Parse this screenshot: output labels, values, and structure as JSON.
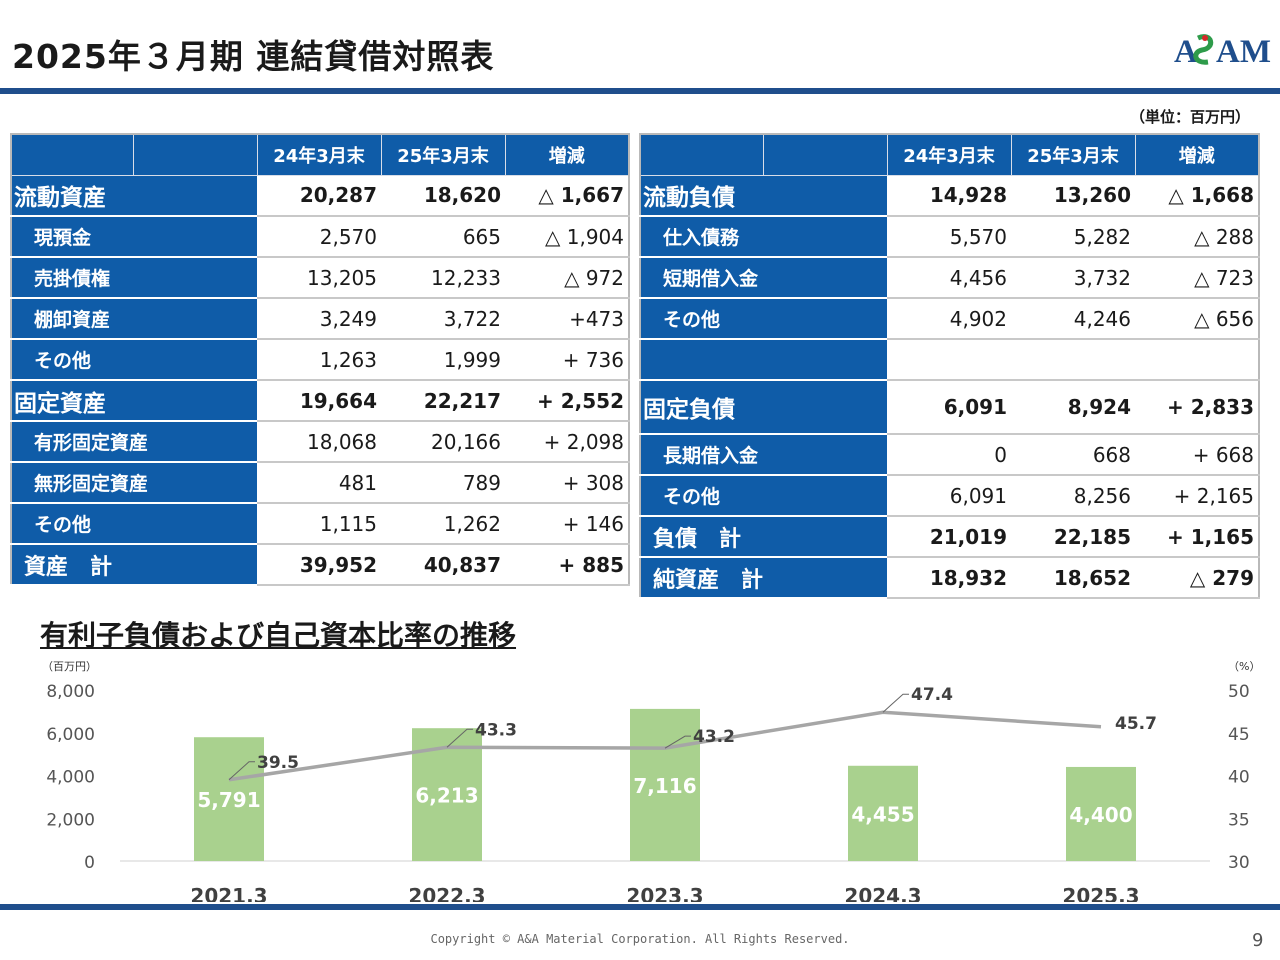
{
  "title": "2025年３月期  連結貸借対照表",
  "logo_text": "ASAM",
  "unit": "（単位：百万円）",
  "columns": {
    "blank": "",
    "c1": "24年3月末",
    "c2": "25年3月末",
    "c3": "増減"
  },
  "assets": [
    {
      "label": "流動資産",
      "v1": "20,287",
      "v2": "18,620",
      "diff": "△ 1,667",
      "kind": "main"
    },
    {
      "label": "現預金",
      "v1": "2,570",
      "v2": "665",
      "diff": "△ 1,904",
      "kind": "sub"
    },
    {
      "label": "売掛債権",
      "v1": "13,205",
      "v2": "12,233",
      "diff": "△ 972",
      "kind": "sub"
    },
    {
      "label": "棚卸資産",
      "v1": "3,249",
      "v2": "3,722",
      "diff": "+473",
      "kind": "sub"
    },
    {
      "label": "その他",
      "v1": "1,263",
      "v2": "1,999",
      "diff": "+ 736",
      "kind": "sub"
    },
    {
      "label": "固定資産",
      "v1": "19,664",
      "v2": "22,217",
      "diff": "+ 2,552",
      "kind": "main"
    },
    {
      "label": "有形固定資産",
      "v1": "18,068",
      "v2": "20,166",
      "diff": "+ 2,098",
      "kind": "sub"
    },
    {
      "label": "無形固定資産",
      "v1": "481",
      "v2": "789",
      "diff": "+ 308",
      "kind": "sub"
    },
    {
      "label": "その他",
      "v1": "1,115",
      "v2": "1,262",
      "diff": "+ 146",
      "kind": "sub"
    },
    {
      "label": "資産　計",
      "v1": "39,952",
      "v2": "40,837",
      "diff": "+ 885",
      "kind": "total"
    }
  ],
  "liabilities": [
    {
      "label": "流動負債",
      "v1": "14,928",
      "v2": "13,260",
      "diff": "△ 1,668",
      "kind": "main"
    },
    {
      "label": "仕入債務",
      "v1": "5,570",
      "v2": "5,282",
      "diff": "△ 288",
      "kind": "sub"
    },
    {
      "label": "短期借入金",
      "v1": "4,456",
      "v2": "3,732",
      "diff": "△ 723",
      "kind": "sub"
    },
    {
      "label": "その他",
      "v1": "4,902",
      "v2": "4,246",
      "diff": "△ 656",
      "kind": "sub"
    },
    {
      "label": "",
      "v1": "",
      "v2": "",
      "diff": "",
      "kind": "blank"
    },
    {
      "label": "固定負債",
      "v1": "6,091",
      "v2": "8,924",
      "diff": "+ 2,833",
      "kind": "main"
    },
    {
      "label": "長期借入金",
      "v1": "0",
      "v2": "668",
      "diff": "+ 668",
      "kind": "sub"
    },
    {
      "label": "その他",
      "v1": "6,091",
      "v2": "8,256",
      "diff": "+ 2,165",
      "kind": "sub"
    },
    {
      "label": "負債　計",
      "v1": "21,019",
      "v2": "22,185",
      "diff": "+ 1,165",
      "kind": "total"
    },
    {
      "label": "純資産　計",
      "v1": "18,932",
      "v2": "18,652",
      "diff": "△ 279",
      "kind": "total"
    }
  ],
  "chart_title": "有利子負債および自己資本比率の推移",
  "chart_data": {
    "type": "bar",
    "categories": [
      "2021.3",
      "2022.3",
      "2023.3",
      "2024.3",
      "2025.3"
    ],
    "series": [
      {
        "values": [
          5791,
          6213,
          7116,
          4455,
          4400
        ],
        "color": "#a9d18e",
        "axis": "left"
      },
      {
        "values": [
          39.5,
          43.3,
          43.2,
          47.4,
          45.7
        ],
        "color": "#a6a6a6",
        "axis": "right",
        "type": "line"
      }
    ],
    "bar_labels": [
      "5,791",
      "6,213",
      "7,116",
      "4,455",
      "4,400"
    ],
    "line_labels": [
      "39.5",
      "43.3",
      "43.2",
      "47.4",
      "45.7"
    ],
    "y_left": {
      "unit": "（百万円）",
      "ylim": [
        0,
        8000
      ],
      "ticks": [
        "0",
        "2,000",
        "4,000",
        "6,000",
        "8,000"
      ]
    },
    "y_right": {
      "unit": "（%）",
      "ylim": [
        30,
        50
      ],
      "ticks": [
        "30",
        "35",
        "40",
        "45",
        "50"
      ]
    }
  },
  "footer": {
    "copyright": "Copyright © A&A Material Corporation. All Rights Reserved.",
    "page": "9"
  },
  "colors": {
    "navy": "#1f4e8c",
    "header_blue": "#0f5ca8",
    "bar_green": "#a9d18e",
    "line_gray": "#a6a6a6"
  }
}
